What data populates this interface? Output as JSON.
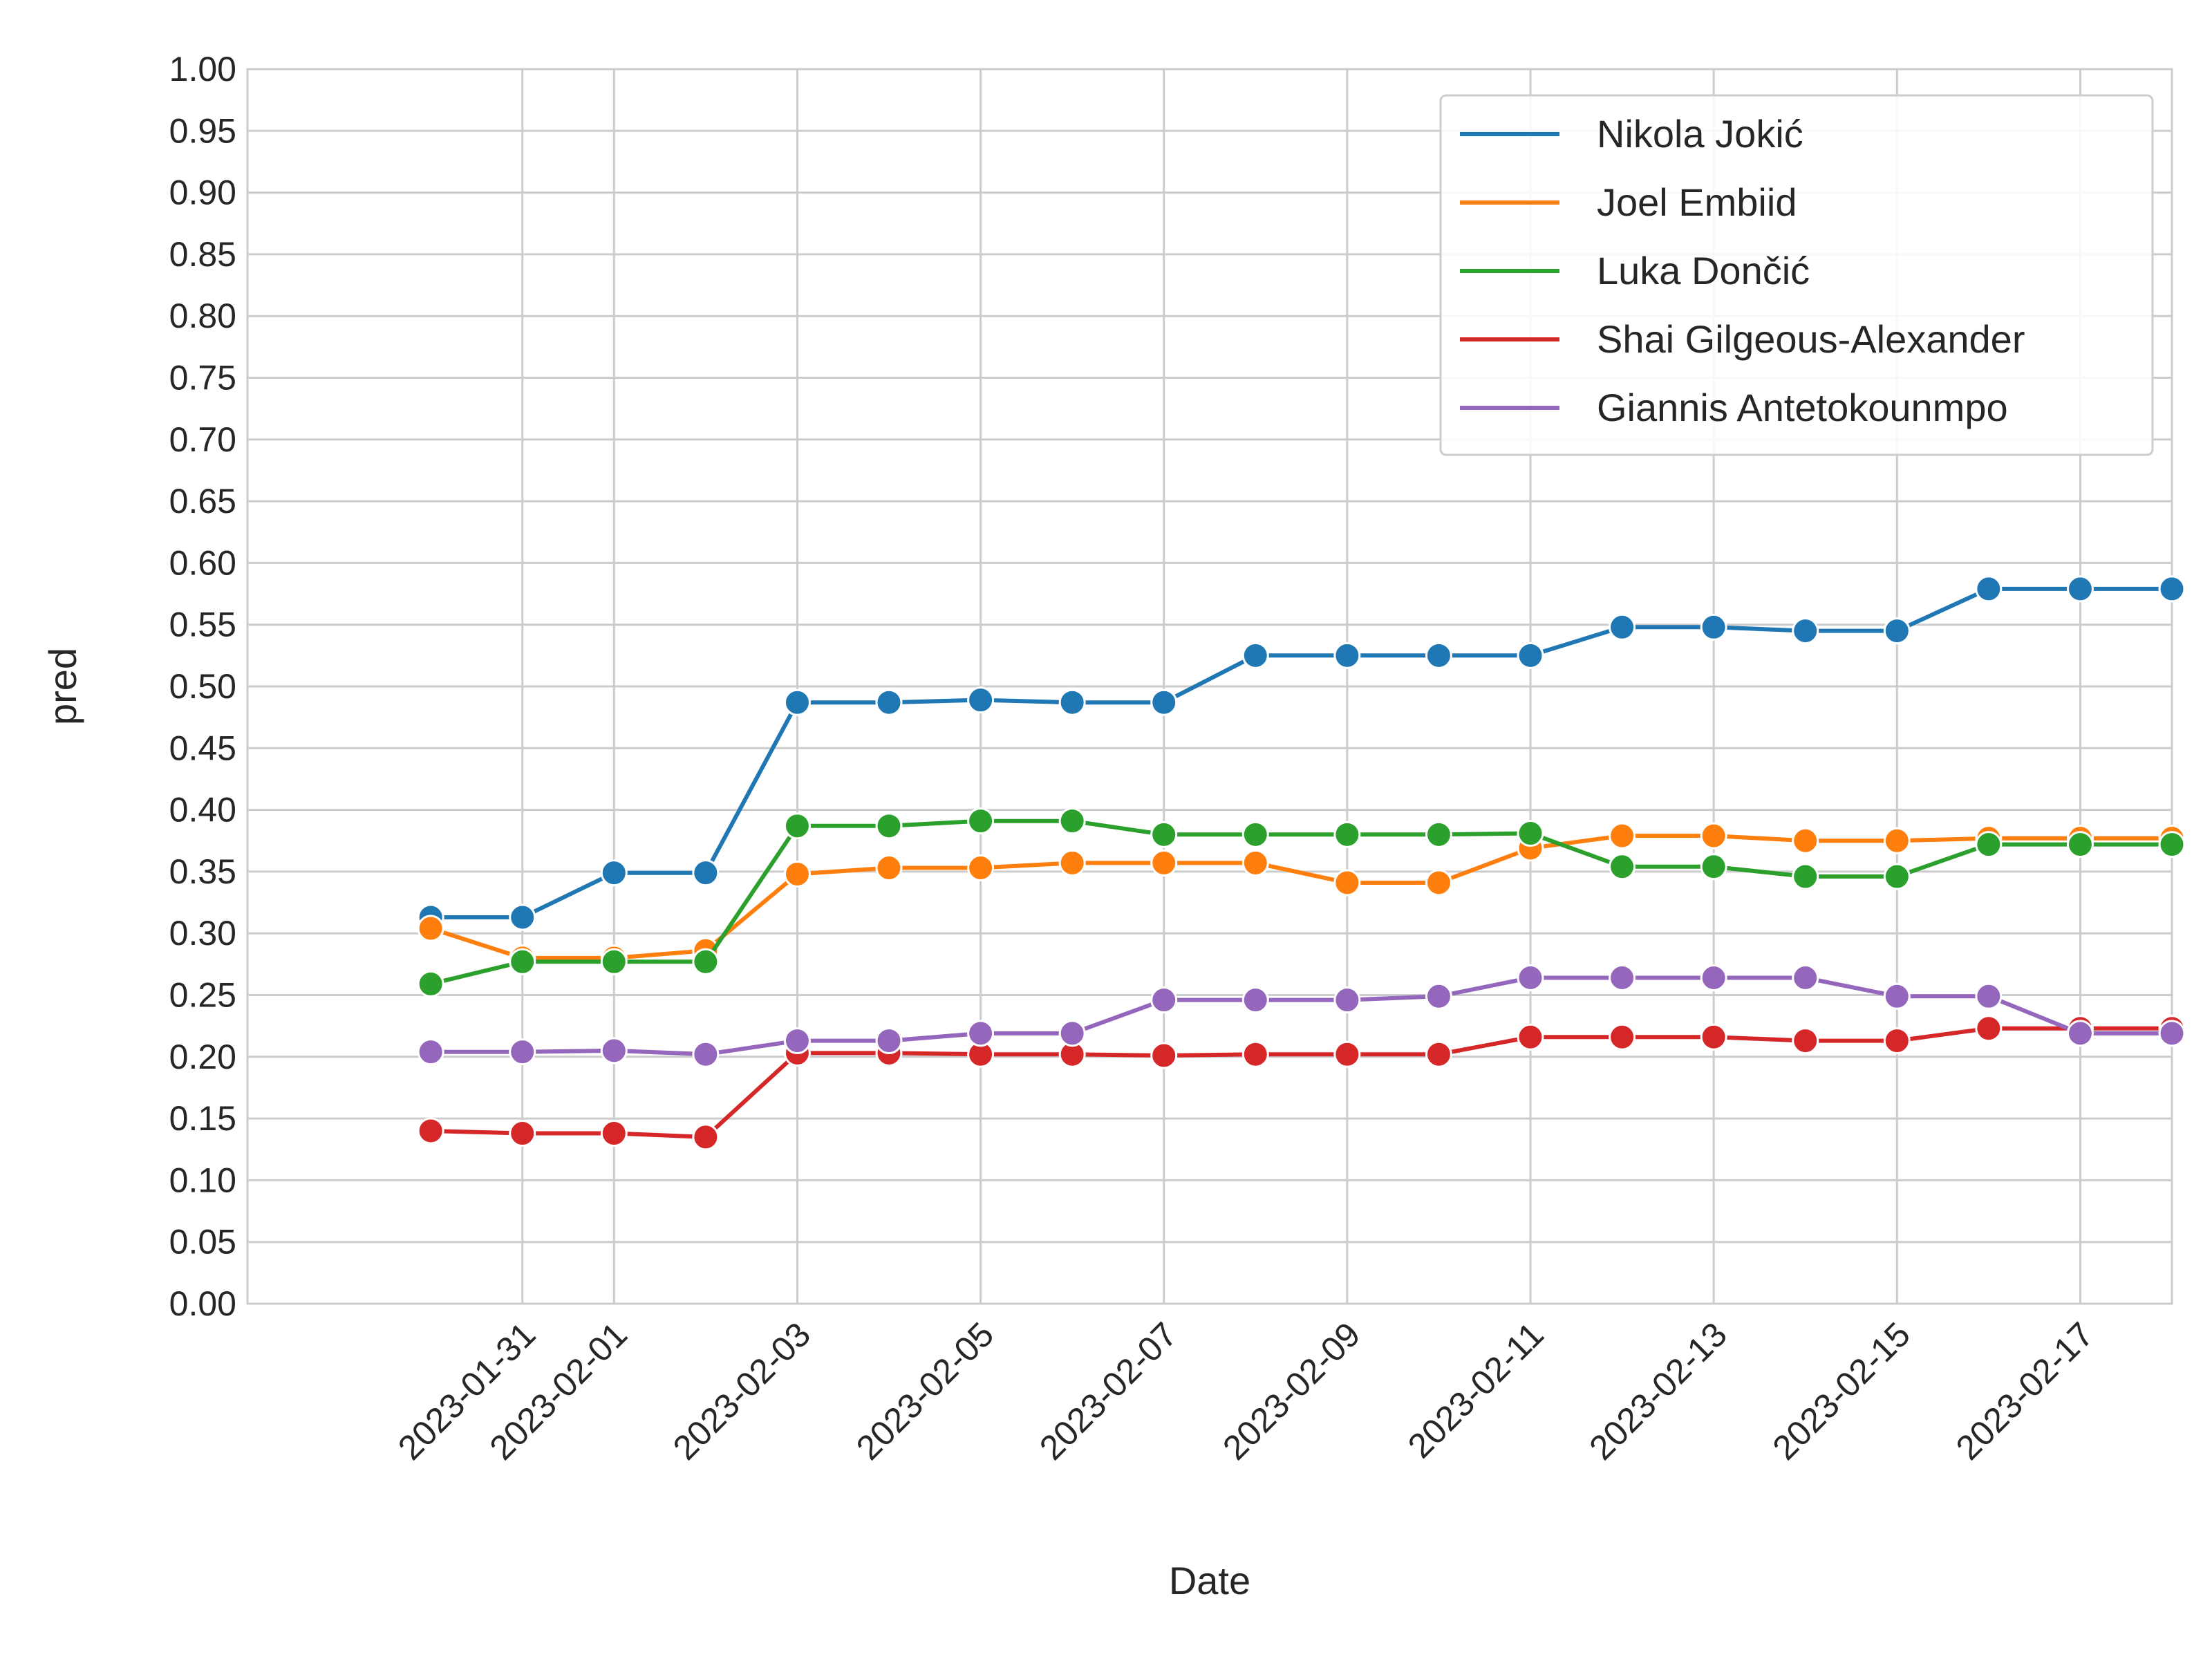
{
  "chart_data": {
    "type": "line",
    "title": "",
    "xlabel": "Date",
    "ylabel": "pred",
    "ylim": [
      0,
      1
    ],
    "yticks": [
      "0.00",
      "0.05",
      "0.10",
      "0.15",
      "0.20",
      "0.25",
      "0.30",
      "0.35",
      "0.40",
      "0.45",
      "0.50",
      "0.55",
      "0.60",
      "0.65",
      "0.70",
      "0.75",
      "0.80",
      "0.85",
      "0.90",
      "0.95",
      "1.00"
    ],
    "xlim": [
      "2023-01-28",
      "2023-02-18"
    ],
    "xticks": [
      "2023-01-31",
      "2023-02-01",
      "2023-02-03",
      "2023-02-05",
      "2023-02-07",
      "2023-02-09",
      "2023-02-11",
      "2023-02-13",
      "2023-02-15",
      "2023-02-17"
    ],
    "grid": true,
    "legend_position": "top-right",
    "x": [
      "2023-01-30",
      "2023-01-31",
      "2023-02-01",
      "2023-02-02",
      "2023-02-03",
      "2023-02-04",
      "2023-02-05",
      "2023-02-06",
      "2023-02-07",
      "2023-02-08",
      "2023-02-09",
      "2023-02-10",
      "2023-02-11",
      "2023-02-12",
      "2023-02-13",
      "2023-02-14",
      "2023-02-15",
      "2023-02-16",
      "2023-02-17",
      "2023-02-18"
    ],
    "series": [
      {
        "name": "Nikola Jokić",
        "color": "#1f77b4",
        "values": [
          0.313,
          0.313,
          0.349,
          0.349,
          0.487,
          0.487,
          0.489,
          0.487,
          0.487,
          0.525,
          0.525,
          0.525,
          0.525,
          0.548,
          0.548,
          0.545,
          0.545,
          0.579,
          0.579,
          0.579
        ]
      },
      {
        "name": "Joel Embiid",
        "color": "#ff7f0e",
        "values": [
          0.304,
          0.28,
          0.28,
          0.286,
          0.348,
          0.353,
          0.353,
          0.357,
          0.357,
          0.357,
          0.341,
          0.341,
          0.369,
          0.379,
          0.379,
          0.375,
          0.375,
          0.377,
          0.377,
          0.377
        ]
      },
      {
        "name": "Luka Dončić",
        "color": "#2ca02c",
        "values": [
          0.259,
          0.277,
          0.277,
          0.277,
          0.387,
          0.387,
          0.391,
          0.391,
          0.38,
          0.38,
          0.38,
          0.38,
          0.381,
          0.354,
          0.354,
          0.346,
          0.346,
          0.372,
          0.372,
          0.372
        ]
      },
      {
        "name": "Shai Gilgeous-Alexander",
        "color": "#d62728",
        "values": [
          0.14,
          0.138,
          0.138,
          0.135,
          0.203,
          0.203,
          0.202,
          0.202,
          0.201,
          0.202,
          0.202,
          0.202,
          0.216,
          0.216,
          0.216,
          0.213,
          0.213,
          0.223,
          0.223,
          0.223
        ]
      },
      {
        "name": "Giannis Antetokounmpo",
        "color": "#9467bd",
        "values": [
          0.204,
          0.204,
          0.205,
          0.202,
          0.213,
          0.213,
          0.219,
          0.219,
          0.246,
          0.246,
          0.246,
          0.249,
          0.264,
          0.264,
          0.264,
          0.264,
          0.249,
          0.249,
          0.219,
          0.219
        ]
      }
    ]
  }
}
